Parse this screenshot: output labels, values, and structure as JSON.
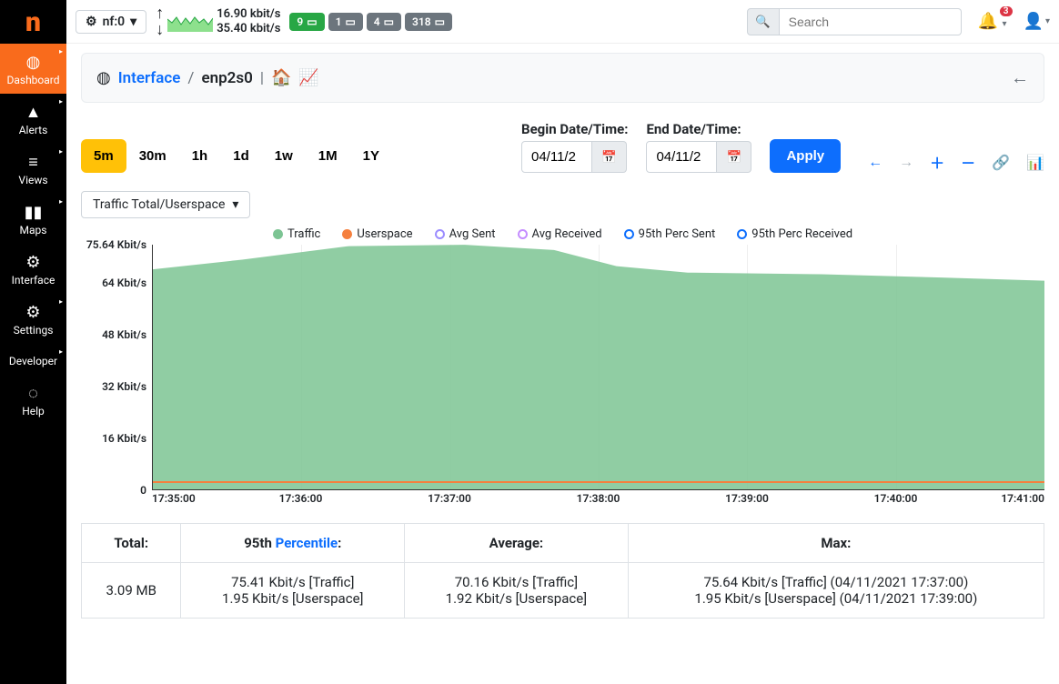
{
  "logo": "n",
  "sidebar": {
    "items": [
      {
        "label": "Dashboard",
        "icon": "◍",
        "active": true,
        "caret": true
      },
      {
        "label": "Alerts",
        "icon": "▲",
        "caret": true
      },
      {
        "label": "Views",
        "icon": "≡",
        "caret": true
      },
      {
        "label": "Maps",
        "icon": "▮▮",
        "caret": true
      },
      {
        "label": "Interface",
        "icon": "⚙",
        "caret": false
      },
      {
        "label": "Settings",
        "icon": "⚙",
        "caret": true
      },
      {
        "label": "Developer",
        "icon": "</>",
        "caret": true
      },
      {
        "label": "Help",
        "icon": "◌",
        "caret": false
      }
    ]
  },
  "topbar": {
    "nf_label": "nf:0",
    "rate_down": "16.90 kbit/s",
    "rate_up": "35.40 kbit/s",
    "badges": [
      {
        "val": "9",
        "cls": "badge-green"
      },
      {
        "val": "1",
        "cls": "badge-gray"
      },
      {
        "val": "4",
        "cls": "badge-gray"
      },
      {
        "val": "318",
        "cls": "badge-gray"
      }
    ],
    "search_placeholder": "Search",
    "notif_count": "3"
  },
  "breadcrumb": {
    "link": "Interface",
    "current": "enp2s0"
  },
  "time_ranges": [
    "5m",
    "30m",
    "1h",
    "1d",
    "1w",
    "1M",
    "1Y"
  ],
  "time_range_active": "5m",
  "dates": {
    "begin_label": "Begin Date/Time:",
    "end_label": "End Date/Time:",
    "begin_val": "04/11/2",
    "end_val": "04/11/2"
  },
  "apply_label": "Apply",
  "metric_dropdown": "Traffic Total/Userspace",
  "chart": {
    "type": "area",
    "ylabel_unit": "Kbit/s",
    "ylim": [
      0,
      75.64
    ],
    "yticks": [
      {
        "v": 75.64,
        "label": "75.64 Kbit/s"
      },
      {
        "v": 64,
        "label": "64 Kbit/s"
      },
      {
        "v": 48,
        "label": "48 Kbit/s"
      },
      {
        "v": 32,
        "label": "32 Kbit/s"
      },
      {
        "v": 16,
        "label": "16 Kbit/s"
      },
      {
        "v": 0,
        "label": "0"
      }
    ],
    "xticks": [
      "17:35:00",
      "17:36:00",
      "17:37:00",
      "17:38:00",
      "17:39:00",
      "17:40:00",
      "17:41:00"
    ],
    "traffic_color": "#7cc493",
    "userspace_color": "#f5803e",
    "avg_sent_color": "#9b8cff",
    "avg_recv_color": "#c48cff",
    "p95_sent_color": "#0d6efd",
    "p95_recv_color": "#0d6efd",
    "background": "#ffffff",
    "grid_color": "#eeeeee",
    "legend": [
      {
        "label": "Traffic",
        "type": "dot",
        "color": "#7cc493"
      },
      {
        "label": "Userspace",
        "type": "dot",
        "color": "#f5803e"
      },
      {
        "label": "Avg Sent",
        "type": "circle",
        "color": "#9b8cff"
      },
      {
        "label": "Avg Received",
        "type": "circle",
        "color": "#c48cff"
      },
      {
        "label": "95th Perc Sent",
        "type": "circle",
        "color": "#0d6efd"
      },
      {
        "label": "95th Perc Received",
        "type": "circle",
        "color": "#0d6efd"
      }
    ],
    "traffic_series": [
      {
        "x": 0.0,
        "y": 68
      },
      {
        "x": 0.1,
        "y": 71
      },
      {
        "x": 0.22,
        "y": 75.2
      },
      {
        "x": 0.35,
        "y": 75.6
      },
      {
        "x": 0.45,
        "y": 74
      },
      {
        "x": 0.52,
        "y": 69
      },
      {
        "x": 0.6,
        "y": 67
      },
      {
        "x": 0.75,
        "y": 66.5
      },
      {
        "x": 0.88,
        "y": 65.5
      },
      {
        "x": 1.0,
        "y": 64.5
      }
    ],
    "userspace_y": 1.95
  },
  "stats": {
    "headers": {
      "total": "Total:",
      "p95_a": "95th ",
      "p95_link": "Percentile",
      "p95_b": ":",
      "avg": "Average:",
      "max": "Max:"
    },
    "total": "3.09 MB",
    "p95": [
      "75.41 Kbit/s [Traffic]",
      "1.95 Kbit/s [Userspace]"
    ],
    "avg": [
      "70.16 Kbit/s [Traffic]",
      "1.92 Kbit/s [Userspace]"
    ],
    "max": [
      "75.64 Kbit/s [Traffic] (04/11/2021 17:37:00)",
      "1.95 Kbit/s [Userspace] (04/11/2021 17:39:00)"
    ]
  }
}
